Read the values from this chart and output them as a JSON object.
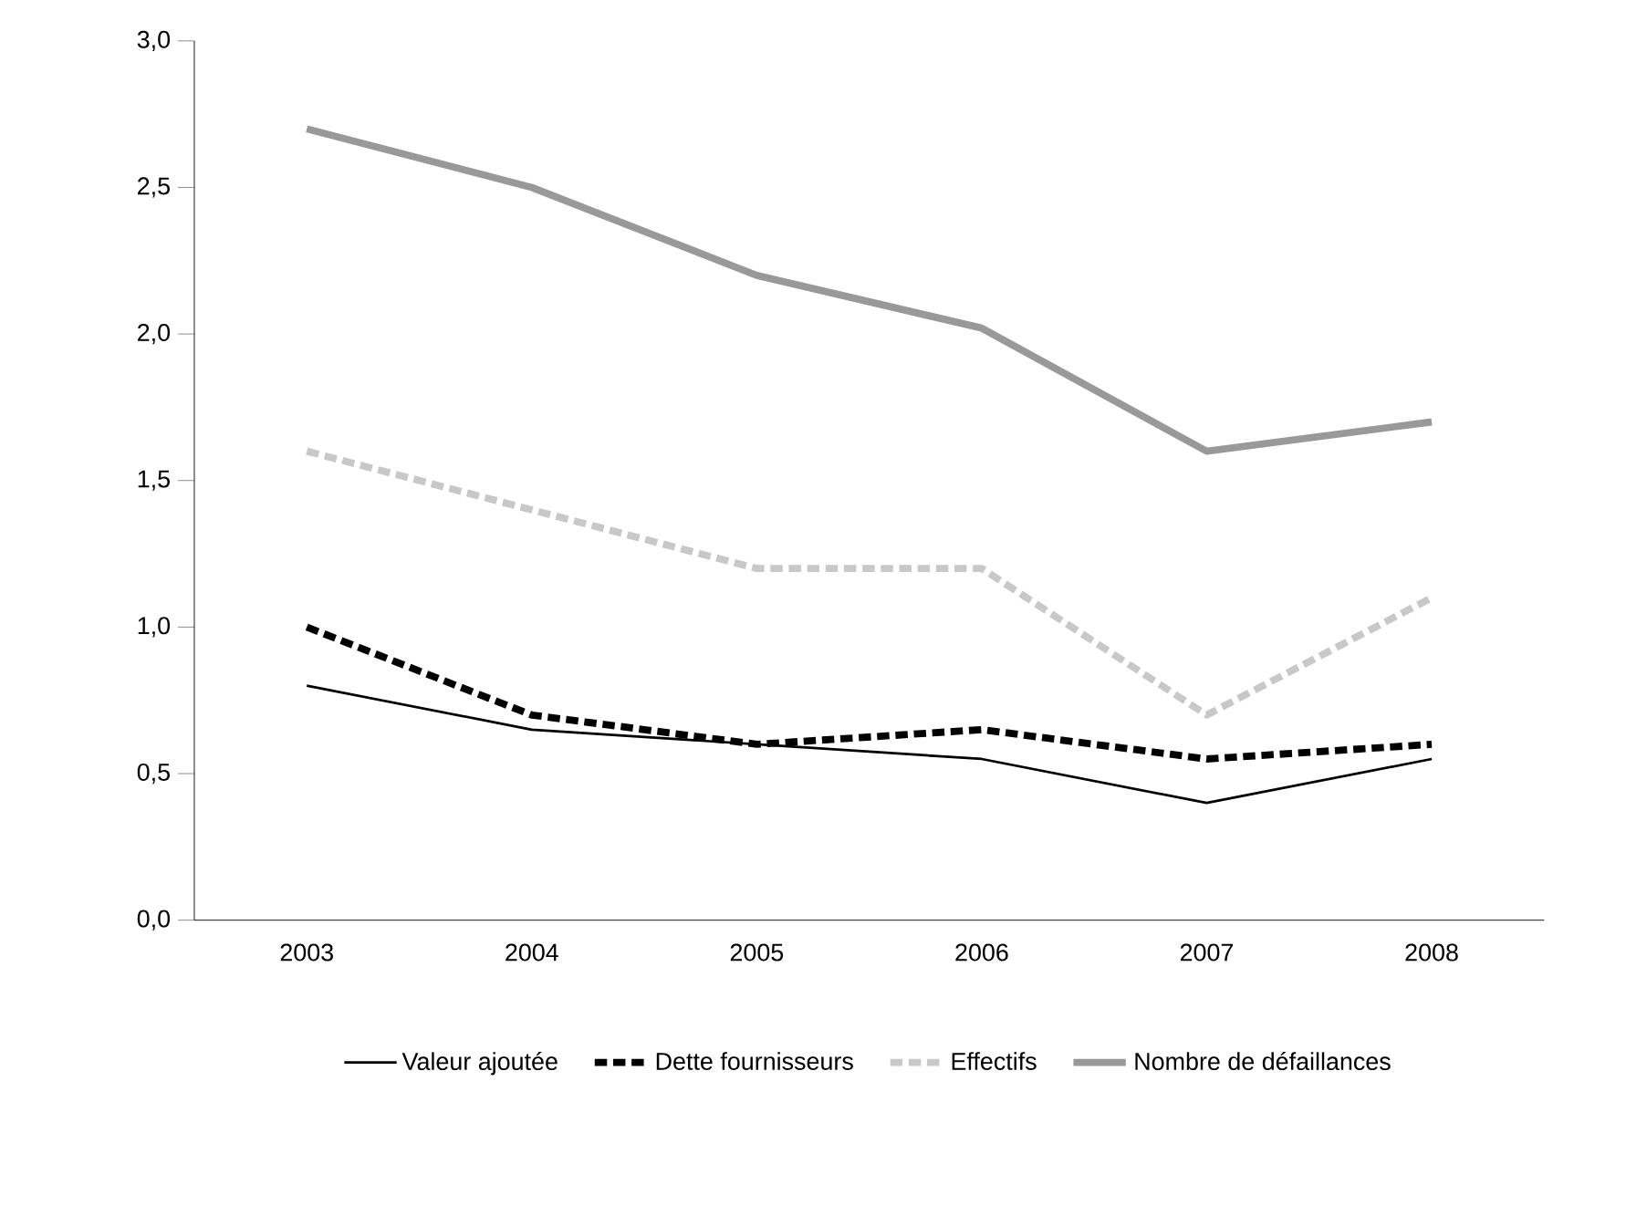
{
  "chart_data": {
    "type": "line",
    "categories": [
      "2003",
      "2004",
      "2005",
      "2006",
      "2007",
      "2008"
    ],
    "series": [
      {
        "name": "Valeur ajoutée",
        "color": "#000000",
        "line_style": "solid",
        "values": [
          0.8,
          0.65,
          0.6,
          0.55,
          0.4,
          0.55
        ]
      },
      {
        "name": "Dette fournisseurs",
        "color": "#000000",
        "line_style": "dashed",
        "values": [
          1.0,
          0.7,
          0.6,
          0.65,
          0.55,
          0.6
        ]
      },
      {
        "name": "Effectifs",
        "color": "#c8c8c8",
        "line_style": "dashed",
        "values": [
          1.6,
          1.4,
          1.2,
          1.2,
          0.7,
          1.1
        ]
      },
      {
        "name": "Nombre de défaillances",
        "color": "#999999",
        "line_style": "solid",
        "values": [
          2.7,
          2.5,
          2.2,
          2.02,
          1.6,
          1.7
        ]
      }
    ],
    "ylim": [
      0,
      3
    ],
    "yticks": [
      {
        "value": 0,
        "label": "0,0"
      },
      {
        "value": 0.5,
        "label": "0,5"
      },
      {
        "value": 1,
        "label": "1,0"
      },
      {
        "value": 1.5,
        "label": "1,5"
      },
      {
        "value": 2,
        "label": "2,0"
      },
      {
        "value": 2.5,
        "label": "2,5"
      },
      {
        "value": 3,
        "label": "3,0"
      }
    ],
    "grid": false,
    "legend": "bottom",
    "marker": "none"
  }
}
